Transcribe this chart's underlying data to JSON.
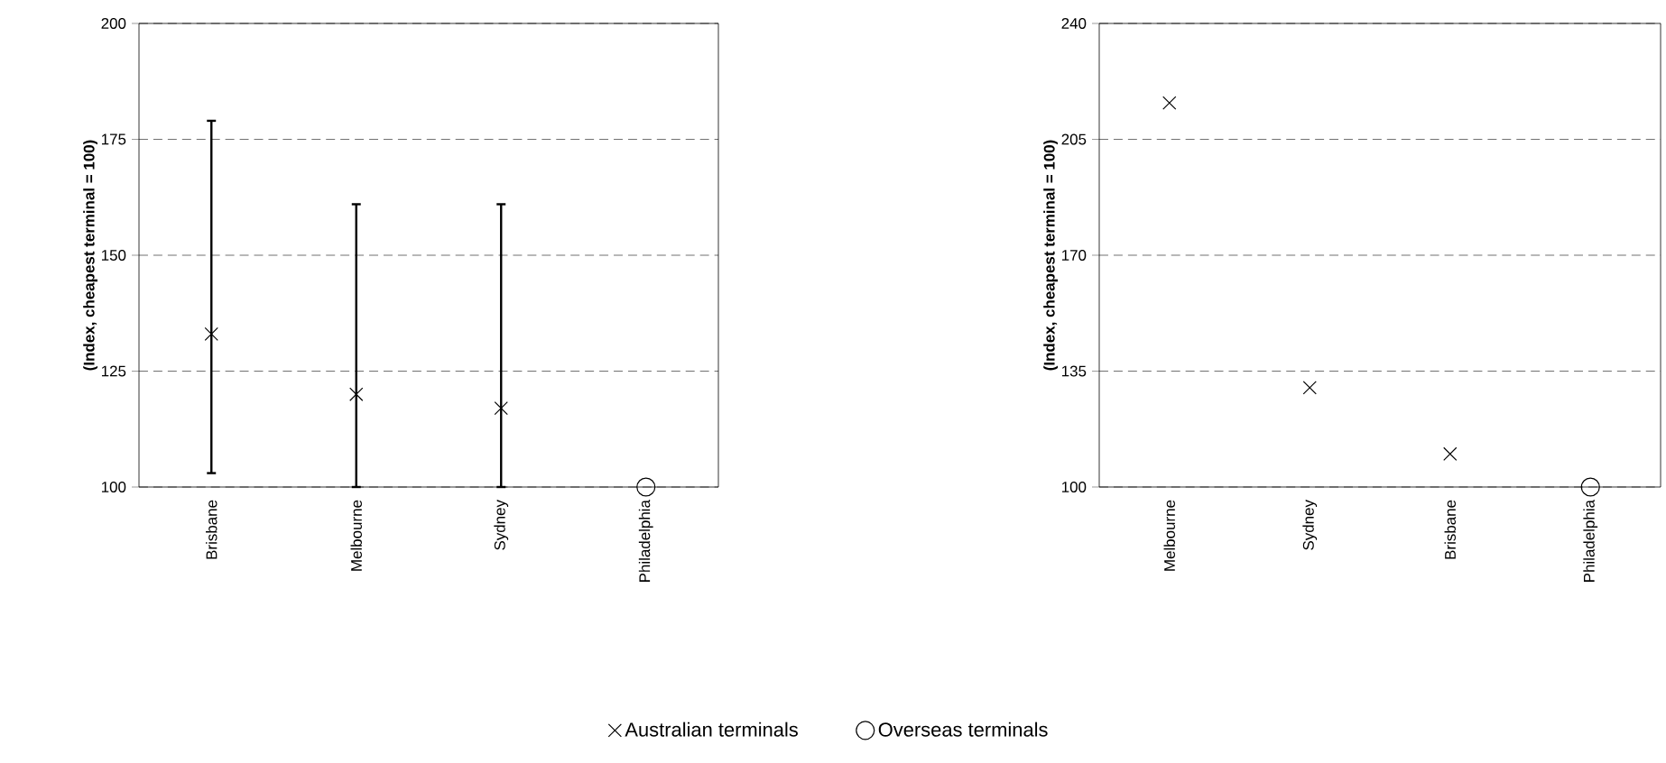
{
  "chart_data": [
    {
      "type": "scatter",
      "ylabel": "(Index, cheapest terminal = 100)",
      "categories": [
        "Brisbane",
        "Melbourne",
        "Sydney",
        "Philadelphia"
      ],
      "ylim": [
        100,
        200
      ],
      "yticks": [
        100,
        125,
        150,
        175,
        200
      ],
      "grid": "y",
      "legend": "bottom",
      "series": [
        {
          "name": "Australian terminals",
          "color": "#000000",
          "marker": "cross",
          "values": [
            133,
            120,
            117,
            null
          ],
          "errors": [
            [
              103,
              179
            ],
            [
              100,
              161
            ],
            [
              100,
              161
            ],
            null
          ]
        },
        {
          "name": "Overseas terminals",
          "color": "#000000",
          "marker": "circle",
          "values": [
            null,
            null,
            null,
            100
          ]
        }
      ]
    },
    {
      "type": "scatter",
      "ylabel": "(Index, cheapest terminal = 100)",
      "categories": [
        "Melbourne",
        "Sydney",
        "Brisbane",
        "Philadelphia"
      ],
      "ylim": [
        100,
        240
      ],
      "yticks": [
        100,
        135,
        170,
        205,
        240
      ],
      "grid": "y",
      "series": [
        {
          "color": "#000000",
          "marker": "cross",
          "values": [
            216,
            130,
            110,
            null
          ]
        },
        {
          "color": "#000000",
          "marker": "circle",
          "values": [
            null,
            null,
            null,
            100
          ]
        }
      ]
    }
  ]
}
